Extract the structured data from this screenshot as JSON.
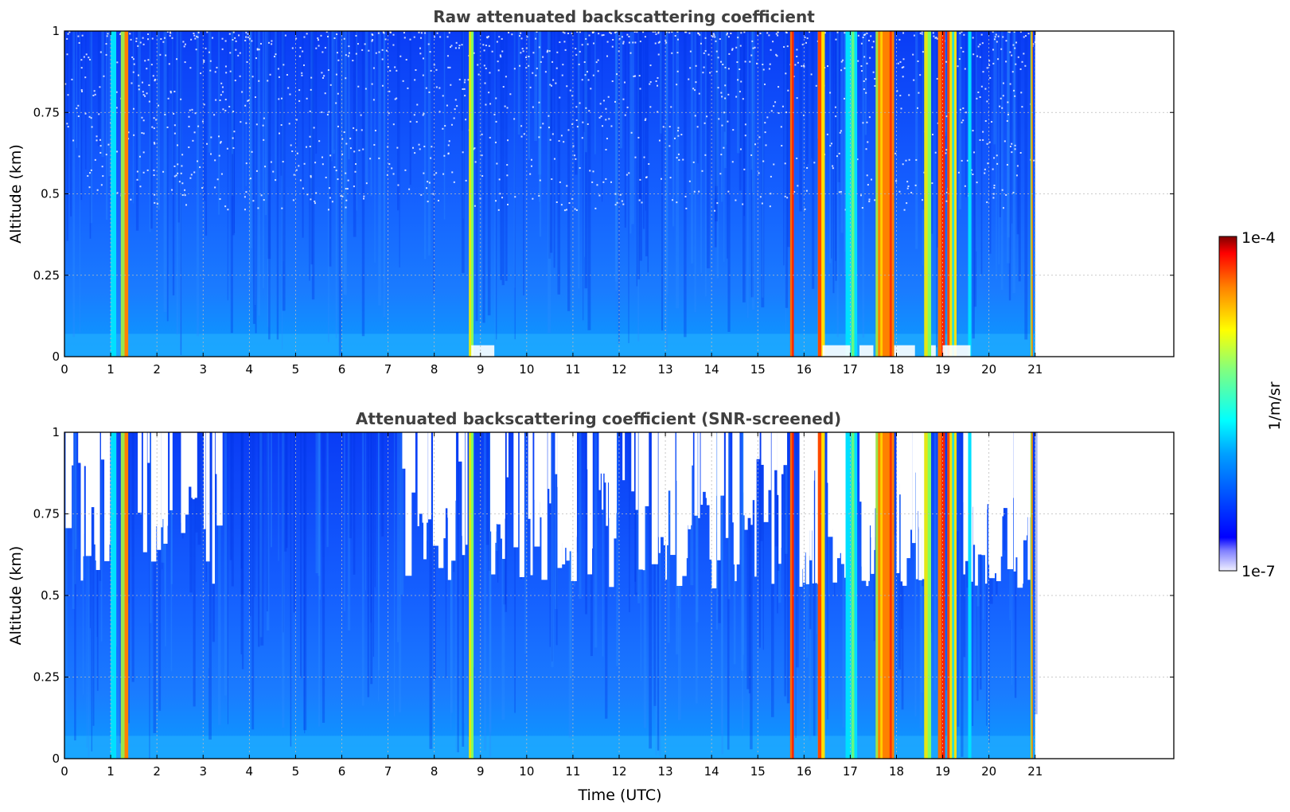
{
  "chart_data": [
    {
      "type": "heatmap",
      "title": "Raw attenuated backscattering coefficient",
      "xlabel": "",
      "ylabel": "Altitude (km)",
      "xlim": [
        0,
        24
      ],
      "ylim": [
        0,
        1
      ],
      "x_ticks": [
        "0",
        "1",
        "2",
        "3",
        "4",
        "5",
        "6",
        "7",
        "8",
        "9",
        "10",
        "11",
        "12",
        "13",
        "14",
        "15",
        "16",
        "17",
        "18",
        "19",
        "20",
        "21"
      ],
      "y_ticks": [
        "0",
        "0.25",
        "0.5",
        "0.75",
        "1"
      ],
      "data_end_hour": 21,
      "grid": true,
      "screened": false,
      "colormap": "jet",
      "log_scale": true,
      "high_signal_bands_hours": [
        [
          1.0,
          1.12
        ],
        [
          1.22,
          1.38
        ],
        [
          8.75,
          8.85
        ],
        [
          15.7,
          15.78
        ],
        [
          16.3,
          16.45
        ],
        [
          16.9,
          17.15
        ],
        [
          17.55,
          17.95
        ],
        [
          18.6,
          18.75
        ],
        [
          18.9,
          19.05
        ],
        [
          19.1,
          19.3
        ],
        [
          19.55,
          19.62
        ],
        [
          20.9,
          20.95
        ]
      ],
      "near_ground_gaps_hours": [
        [
          8.8,
          9.3
        ],
        [
          16.4,
          17.0
        ],
        [
          17.2,
          17.5
        ],
        [
          17.95,
          18.4
        ],
        [
          18.75,
          18.85
        ],
        [
          19.0,
          19.6
        ]
      ]
    },
    {
      "type": "heatmap",
      "title": "Attenuated backscattering coefficient (SNR-screened)",
      "xlabel": "Time (UTC)",
      "ylabel": "Altitude (km)",
      "xlim": [
        0,
        24
      ],
      "ylim": [
        0,
        1
      ],
      "x_ticks": [
        "0",
        "1",
        "2",
        "3",
        "4",
        "5",
        "6",
        "7",
        "8",
        "9",
        "10",
        "11",
        "12",
        "13",
        "14",
        "15",
        "16",
        "17",
        "18",
        "19",
        "20",
        "21"
      ],
      "y_ticks": [
        "0",
        "0.25",
        "0.5",
        "0.75",
        "1"
      ],
      "data_end_hour": 21,
      "grid": true,
      "screened": true,
      "colormap": "jet",
      "log_scale": true,
      "high_signal_bands_hours": [
        [
          1.0,
          1.12
        ],
        [
          1.22,
          1.38
        ],
        [
          8.75,
          8.85
        ],
        [
          15.7,
          15.78
        ],
        [
          16.3,
          16.45
        ],
        [
          16.9,
          17.15
        ],
        [
          17.55,
          17.95
        ],
        [
          18.6,
          18.75
        ],
        [
          18.9,
          19.05
        ],
        [
          19.1,
          19.3
        ],
        [
          19.55,
          19.62
        ],
        [
          20.9,
          20.95
        ]
      ],
      "screened_regions_hours": [
        [
          0.0,
          0.9
        ],
        [
          1.5,
          3.3
        ],
        [
          7.3,
          8.7
        ],
        [
          9.2,
          10.5
        ],
        [
          10.6,
          11.0
        ],
        [
          11.3,
          13.0
        ],
        [
          12.9,
          14.2
        ],
        [
          14.3,
          15.5
        ],
        [
          15.9,
          16.3
        ],
        [
          16.5,
          16.9
        ],
        [
          17.2,
          17.5
        ],
        [
          18.0,
          18.6
        ],
        [
          19.3,
          20.0
        ],
        [
          20.0,
          20.9
        ]
      ]
    }
  ],
  "colorbar": {
    "label": "1/m/sr",
    "top_label": "1e-4",
    "bottom_label": "1e-7",
    "colormap": "jet"
  }
}
